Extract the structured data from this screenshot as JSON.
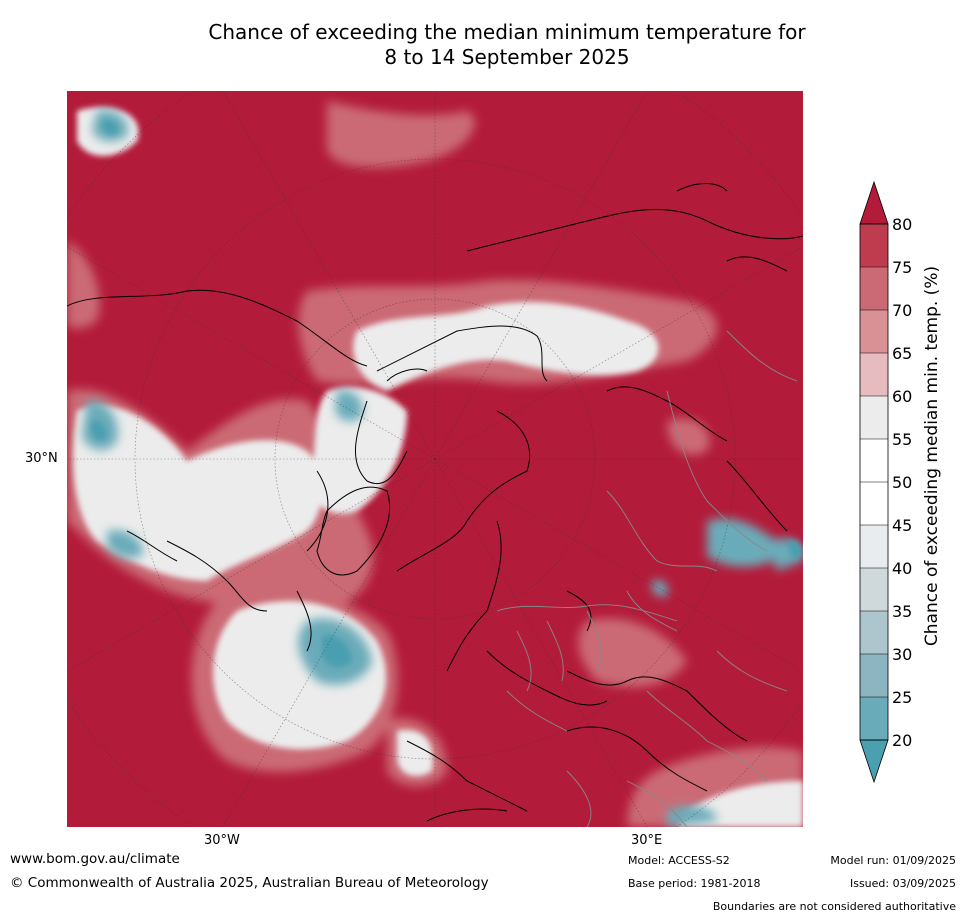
{
  "title": {
    "line1": "Chance of exceeding the median minimum temperature for",
    "line2": "8 to 14 September 2025"
  },
  "map": {
    "lat_label": "30°N",
    "lon_labels": [
      "30°W",
      "30°E"
    ],
    "dominant_color": "#b31b3a"
  },
  "colorbar": {
    "title": "Chance of exceeding median min. temp. (%)",
    "ticks": [
      "80",
      "75",
      "70",
      "65",
      "60",
      "55",
      "50",
      "45",
      "40",
      "35",
      "30",
      "25",
      "20"
    ],
    "colors": [
      "#b31b3a",
      "#bf3c4e",
      "#cb6a75",
      "#d99196",
      "#e7bcc0",
      "#ececec",
      "#ffffff",
      "#ffffff",
      "#e8ecef",
      "#cfd9dc",
      "#adc6cd",
      "#8db5c1",
      "#6aabb9",
      "#4a9fb0"
    ]
  },
  "footer": {
    "url": "www.bom.gov.au/climate",
    "copyright": "© Commonwealth of Australia 2025, Australian Bureau of Meteorology",
    "model": "Model: ACCESS-S2",
    "base_period": "Base period: 1981-2018",
    "model_run": "Model run: 01/09/2025",
    "issued": "Issued: 03/09/2025",
    "disclaimer": "Boundaries are not considered authoritative"
  }
}
